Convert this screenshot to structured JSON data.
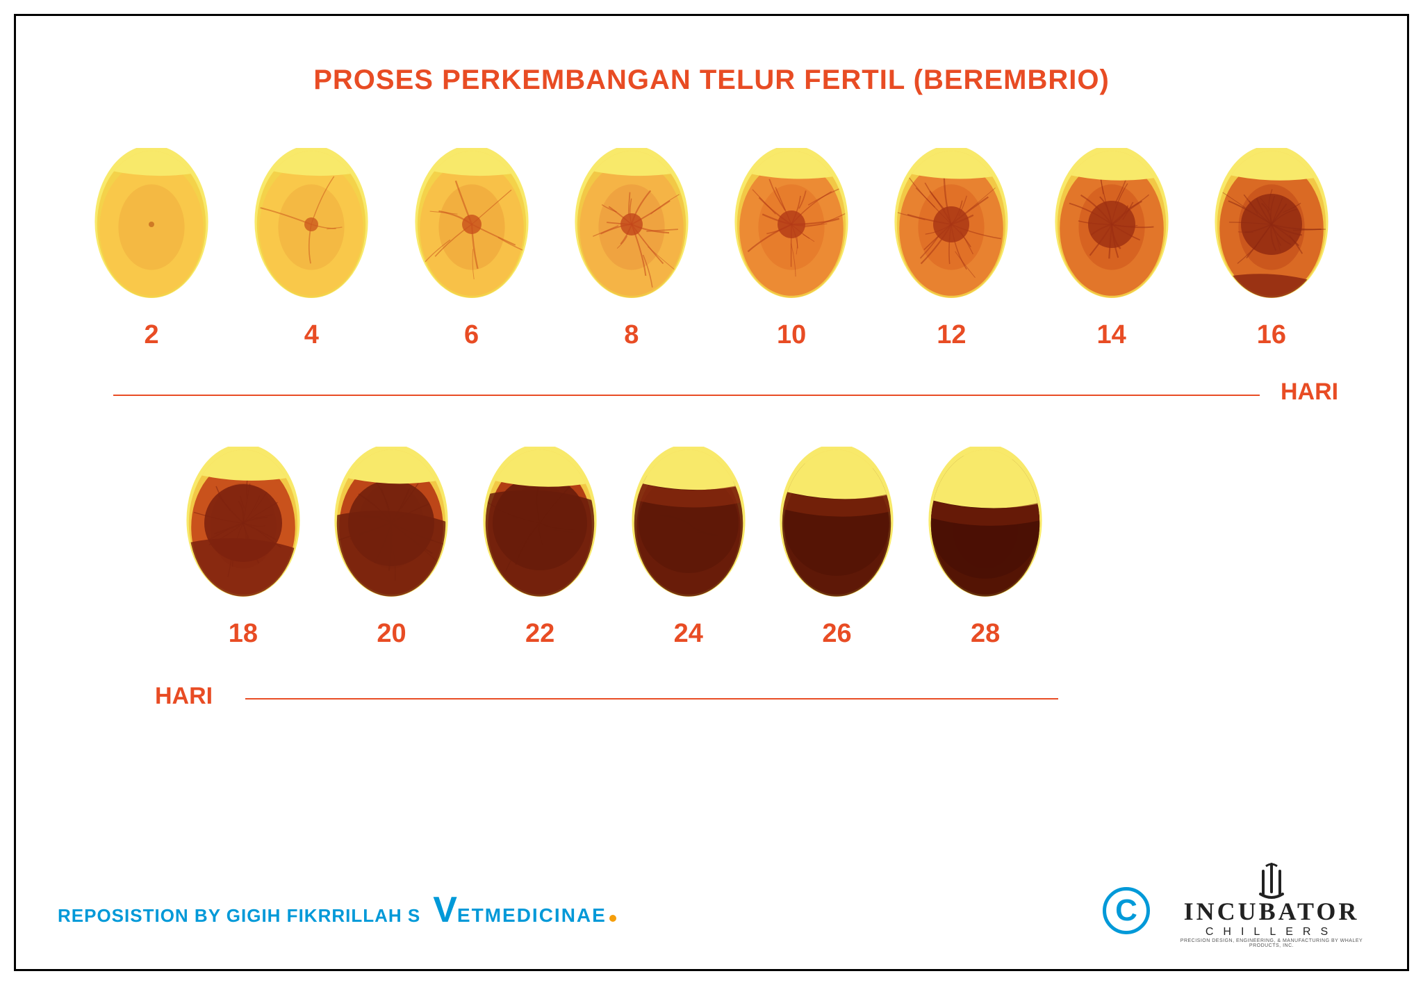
{
  "title": {
    "text": "PROSES PERKEMBANGAN TELUR FERTIL (BEREMBRIO)",
    "color": "#e84c24",
    "fontsize": 40,
    "fontweight": 800
  },
  "unit_label": "HARI",
  "unit_label_color": "#e84c24",
  "unit_label_fontsize": 34,
  "day_label_color": "#e84c24",
  "day_label_fontsize": 38,
  "day_label_fontweight": 800,
  "egg_width": 170,
  "egg_height": 220,
  "row1": {
    "days": [
      2,
      4,
      6,
      8,
      10,
      12,
      14,
      16
    ]
  },
  "row2": {
    "days": [
      18,
      20,
      22,
      24,
      26,
      28
    ]
  },
  "eggs": {
    "2": {
      "shell": "#f4d24a",
      "yolk": "#f9c84a",
      "inner": "#f3b642",
      "embryo_r": 4,
      "embryo_c": "#c66a1e",
      "veins": 0,
      "dark_fill": 0,
      "air": 0.12
    },
    "4": {
      "shell": "#f4d24a",
      "yolk": "#f9c84a",
      "inner": "#f3b642",
      "embryo_r": 10,
      "embryo_c": "#cc5a1e",
      "veins": 4,
      "dark_fill": 0,
      "air": 0.12
    },
    "6": {
      "shell": "#f4d24a",
      "yolk": "#f8c148",
      "inner": "#f1ac3e",
      "embryo_r": 14,
      "embryo_c": "#c8501c",
      "veins": 6,
      "dark_fill": 0,
      "air": 0.12
    },
    "8": {
      "shell": "#f2c846",
      "yolk": "#f5b446",
      "inner": "#eda040",
      "embryo_r": 16,
      "embryo_c": "#c2461a",
      "veins": 10,
      "dark_fill": 0,
      "air": 0.12
    },
    "10": {
      "shell": "#f2c846",
      "yolk": "#ec8b34",
      "inner": "#e67a2c",
      "embryo_r": 20,
      "embryo_c": "#b33a16",
      "veins": 12,
      "dark_fill": 0,
      "air": 0.14
    },
    "12": {
      "shell": "#f2c846",
      "yolk": "#e88230",
      "inner": "#df6e26",
      "embryo_r": 26,
      "embryo_c": "#a83414",
      "veins": 14,
      "dark_fill": 0,
      "air": 0.14
    },
    "14": {
      "shell": "#f2c846",
      "yolk": "#e2762a",
      "inner": "#d56020",
      "embryo_r": 34,
      "embryo_c": "#9c2e12",
      "veins": 16,
      "dark_fill": 0,
      "air": 0.15
    },
    "16": {
      "shell": "#f2c846",
      "yolk": "#da6a24",
      "inner": "#c8531c",
      "embryo_r": 44,
      "embryo_c": "#8e2810",
      "veins": 18,
      "dark_fill": 0.1,
      "air": 0.15
    },
    "18": {
      "shell": "#f2c846",
      "yolk": "#c9521c",
      "inner": "#b84618",
      "embryo_r": 56,
      "embryo_c": "#7e220e",
      "veins": 14,
      "dark_fill": 0.35,
      "air": 0.16
    },
    "20": {
      "shell": "#f2c846",
      "yolk": "#bd4618",
      "inner": "#aa3c14",
      "embryo_r": 62,
      "embryo_c": "#72200c",
      "veins": 10,
      "dark_fill": 0.55,
      "air": 0.18
    },
    "22": {
      "shell": "#f2c846",
      "yolk": "#b23e14",
      "inner": "#9e3412",
      "embryo_r": 68,
      "embryo_c": "#681c0a",
      "veins": 6,
      "dark_fill": 0.7,
      "air": 0.2
    },
    "24": {
      "shell": "#f2c846",
      "yolk": "#a63612",
      "inner": "#922e10",
      "embryo_r": 72,
      "embryo_c": "#5e1808",
      "veins": 2,
      "dark_fill": 0.82,
      "air": 0.22
    },
    "26": {
      "shell": "#f2c846",
      "yolk": "#9a300e",
      "inner": "#86280c",
      "embryo_r": 76,
      "embryo_c": "#541406",
      "veins": 0,
      "dark_fill": 0.9,
      "air": 0.28
    },
    "28": {
      "shell": "#f2c846",
      "yolk": "#8c2a0c",
      "inner": "#78220a",
      "embryo_r": 80,
      "embryo_c": "#4a1004",
      "veins": 0,
      "dark_fill": 0.95,
      "air": 0.34
    }
  },
  "divider_color": "#e84c24",
  "credit": {
    "text": "REPOSISTION BY GIGIH FIKRRILLAH S",
    "color": "#0099d8",
    "fontsize": 26,
    "fontweight": 900
  },
  "vet_logo": {
    "big": "V",
    "rest": "ETMEDICINAE"
  },
  "c_badge": "C",
  "incubator": {
    "line1": "INCUBATOR",
    "line2": "CHILLERS",
    "line3": "PRECISION DESIGN, ENGINEERING, & MANUFACTURING BY WHALEY PRODUCTS, INC."
  }
}
